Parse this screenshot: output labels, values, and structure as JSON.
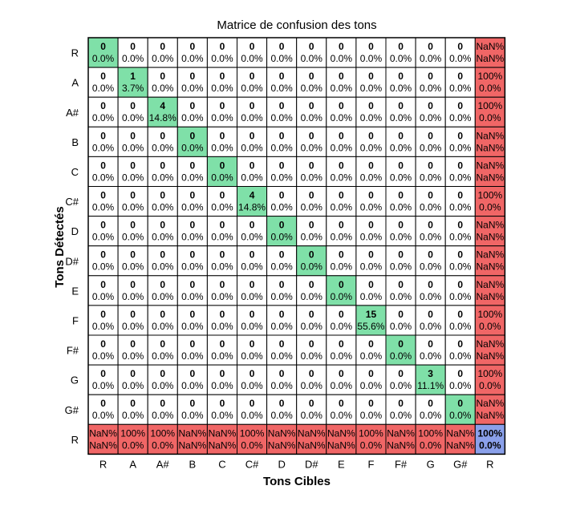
{
  "chart_data": {
    "type": "heatmap",
    "title": "Matrice de confusion des tons",
    "xlabel": "Tons Cibles",
    "ylabel": "Tons Détectés",
    "x_tick_labels": [
      "R",
      "A",
      "A#",
      "B",
      "C",
      "C#",
      "D",
      "D#",
      "E",
      "F",
      "F#",
      "G",
      "G#",
      "R"
    ],
    "y_tick_labels": [
      "R",
      "A",
      "A#",
      "B",
      "C",
      "C#",
      "D",
      "D#",
      "E",
      "F",
      "F#",
      "G",
      "G#",
      "R"
    ],
    "counts": [
      [
        0,
        0,
        0,
        0,
        0,
        0,
        0,
        0,
        0,
        0,
        0,
        0,
        0
      ],
      [
        0,
        1,
        0,
        0,
        0,
        0,
        0,
        0,
        0,
        0,
        0,
        0,
        0
      ],
      [
        0,
        0,
        4,
        0,
        0,
        0,
        0,
        0,
        0,
        0,
        0,
        0,
        0
      ],
      [
        0,
        0,
        0,
        0,
        0,
        0,
        0,
        0,
        0,
        0,
        0,
        0,
        0
      ],
      [
        0,
        0,
        0,
        0,
        0,
        0,
        0,
        0,
        0,
        0,
        0,
        0,
        0
      ],
      [
        0,
        0,
        0,
        0,
        0,
        4,
        0,
        0,
        0,
        0,
        0,
        0,
        0
      ],
      [
        0,
        0,
        0,
        0,
        0,
        0,
        0,
        0,
        0,
        0,
        0,
        0,
        0
      ],
      [
        0,
        0,
        0,
        0,
        0,
        0,
        0,
        0,
        0,
        0,
        0,
        0,
        0
      ],
      [
        0,
        0,
        0,
        0,
        0,
        0,
        0,
        0,
        0,
        0,
        0,
        0,
        0
      ],
      [
        0,
        0,
        0,
        0,
        0,
        0,
        0,
        0,
        0,
        15,
        0,
        0,
        0
      ],
      [
        0,
        0,
        0,
        0,
        0,
        0,
        0,
        0,
        0,
        0,
        0,
        0,
        0
      ],
      [
        0,
        0,
        0,
        0,
        0,
        0,
        0,
        0,
        0,
        0,
        0,
        3,
        0
      ],
      [
        0,
        0,
        0,
        0,
        0,
        0,
        0,
        0,
        0,
        0,
        0,
        0,
        0
      ]
    ],
    "percents": [
      [
        "0.0%",
        "0.0%",
        "0.0%",
        "0.0%",
        "0.0%",
        "0.0%",
        "0.0%",
        "0.0%",
        "0.0%",
        "0.0%",
        "0.0%",
        "0.0%",
        "0.0%"
      ],
      [
        "0.0%",
        "3.7%",
        "0.0%",
        "0.0%",
        "0.0%",
        "0.0%",
        "0.0%",
        "0.0%",
        "0.0%",
        "0.0%",
        "0.0%",
        "0.0%",
        "0.0%"
      ],
      [
        "0.0%",
        "0.0%",
        "14.8%",
        "0.0%",
        "0.0%",
        "0.0%",
        "0.0%",
        "0.0%",
        "0.0%",
        "0.0%",
        "0.0%",
        "0.0%",
        "0.0%"
      ],
      [
        "0.0%",
        "0.0%",
        "0.0%",
        "0.0%",
        "0.0%",
        "0.0%",
        "0.0%",
        "0.0%",
        "0.0%",
        "0.0%",
        "0.0%",
        "0.0%",
        "0.0%"
      ],
      [
        "0.0%",
        "0.0%",
        "0.0%",
        "0.0%",
        "0.0%",
        "0.0%",
        "0.0%",
        "0.0%",
        "0.0%",
        "0.0%",
        "0.0%",
        "0.0%",
        "0.0%"
      ],
      [
        "0.0%",
        "0.0%",
        "0.0%",
        "0.0%",
        "0.0%",
        "14.8%",
        "0.0%",
        "0.0%",
        "0.0%",
        "0.0%",
        "0.0%",
        "0.0%",
        "0.0%"
      ],
      [
        "0.0%",
        "0.0%",
        "0.0%",
        "0.0%",
        "0.0%",
        "0.0%",
        "0.0%",
        "0.0%",
        "0.0%",
        "0.0%",
        "0.0%",
        "0.0%",
        "0.0%"
      ],
      [
        "0.0%",
        "0.0%",
        "0.0%",
        "0.0%",
        "0.0%",
        "0.0%",
        "0.0%",
        "0.0%",
        "0.0%",
        "0.0%",
        "0.0%",
        "0.0%",
        "0.0%"
      ],
      [
        "0.0%",
        "0.0%",
        "0.0%",
        "0.0%",
        "0.0%",
        "0.0%",
        "0.0%",
        "0.0%",
        "0.0%",
        "0.0%",
        "0.0%",
        "0.0%",
        "0.0%"
      ],
      [
        "0.0%",
        "0.0%",
        "0.0%",
        "0.0%",
        "0.0%",
        "0.0%",
        "0.0%",
        "0.0%",
        "0.0%",
        "55.6%",
        "0.0%",
        "0.0%",
        "0.0%"
      ],
      [
        "0.0%",
        "0.0%",
        "0.0%",
        "0.0%",
        "0.0%",
        "0.0%",
        "0.0%",
        "0.0%",
        "0.0%",
        "0.0%",
        "0.0%",
        "0.0%",
        "0.0%"
      ],
      [
        "0.0%",
        "0.0%",
        "0.0%",
        "0.0%",
        "0.0%",
        "0.0%",
        "0.0%",
        "0.0%",
        "0.0%",
        "0.0%",
        "0.0%",
        "11.1%",
        "0.0%"
      ],
      [
        "0.0%",
        "0.0%",
        "0.0%",
        "0.0%",
        "0.0%",
        "0.0%",
        "0.0%",
        "0.0%",
        "0.0%",
        "0.0%",
        "0.0%",
        "0.0%",
        "0.0%"
      ]
    ],
    "row_summary": [
      [
        "NaN%",
        "NaN%"
      ],
      [
        "100%",
        "0.0%"
      ],
      [
        "100%",
        "0.0%"
      ],
      [
        "NaN%",
        "NaN%"
      ],
      [
        "NaN%",
        "NaN%"
      ],
      [
        "100%",
        "0.0%"
      ],
      [
        "NaN%",
        "NaN%"
      ],
      [
        "NaN%",
        "NaN%"
      ],
      [
        "NaN%",
        "NaN%"
      ],
      [
        "100%",
        "0.0%"
      ],
      [
        "NaN%",
        "NaN%"
      ],
      [
        "100%",
        "0.0%"
      ],
      [
        "NaN%",
        "NaN%"
      ]
    ],
    "col_summary": [
      [
        "NaN%",
        "NaN%"
      ],
      [
        "100%",
        "0.0%"
      ],
      [
        "100%",
        "0.0%"
      ],
      [
        "NaN%",
        "NaN%"
      ],
      [
        "NaN%",
        "NaN%"
      ],
      [
        "100%",
        "0.0%"
      ],
      [
        "NaN%",
        "NaN%"
      ],
      [
        "NaN%",
        "NaN%"
      ],
      [
        "NaN%",
        "NaN%"
      ],
      [
        "100%",
        "0.0%"
      ],
      [
        "NaN%",
        "NaN%"
      ],
      [
        "100%",
        "0.0%"
      ],
      [
        "NaN%",
        "NaN%"
      ]
    ],
    "overall": [
      "100%",
      "0.0%"
    ],
    "grid": true,
    "colors": {
      "diagonal": "#7fe0a8",
      "off_diagonal": "#ffffff",
      "summary": "#f06666",
      "summary_correct_text": "#1a7a1a",
      "summary_error_text": "#a01010",
      "overall": "#8aa0ea",
      "overall_correct_text": "#1a7a1a",
      "overall_error_text": "#1a1aa0"
    }
  }
}
